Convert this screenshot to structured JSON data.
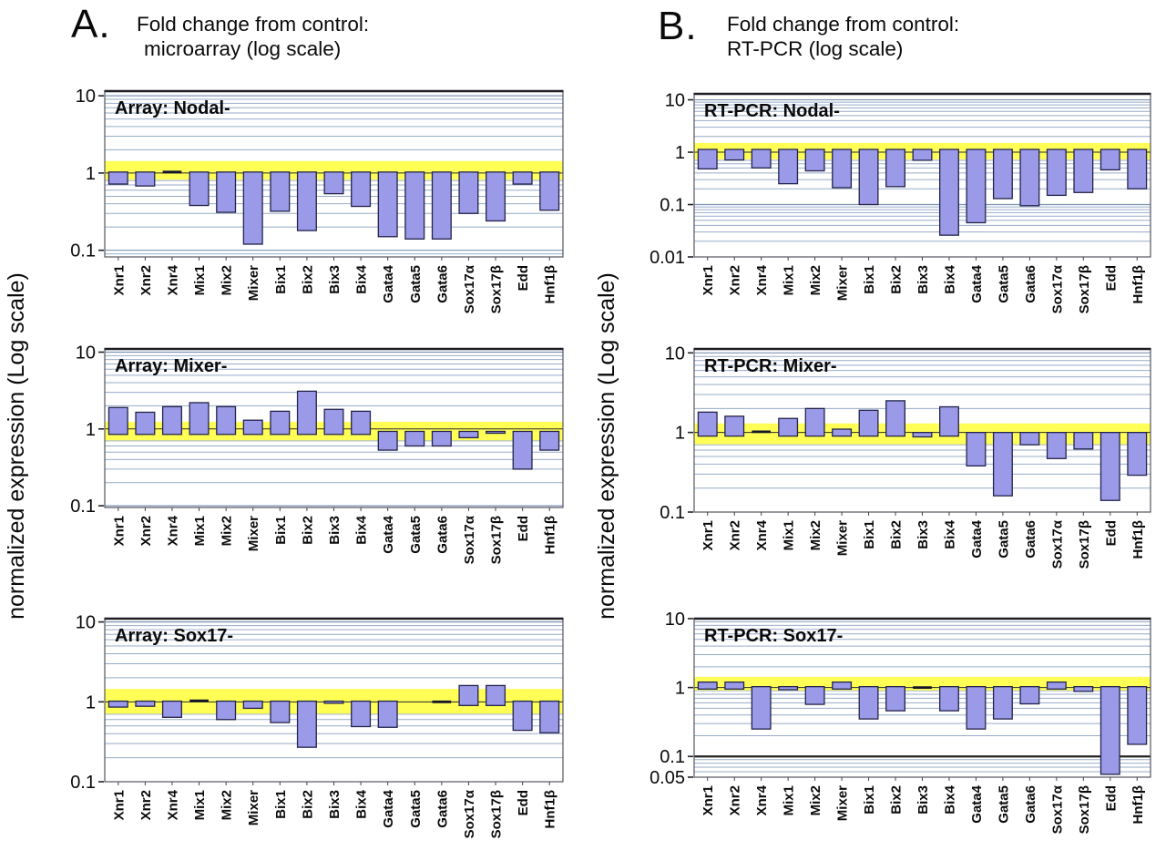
{
  "figure": {
    "panel_a": {
      "label": "A.",
      "title_line1": "Fold change from control:",
      "title_line2": "microarray (log scale)",
      "y_axis_label": "normalized expression (Log scale)"
    },
    "panel_b": {
      "label": "B.",
      "title_line1": "Fold change from control:",
      "title_line2": "RT-PCR (log scale)",
      "y_axis_label": "normalized expression (Log scale)"
    }
  },
  "colors": {
    "bar_fill": "#9b9ae9",
    "bar_stroke": "#23234a",
    "band_yellow": "#ffff55",
    "grid_minor": "#97abc9",
    "grid_decade": "#7e93b6",
    "baseline": "#2a2a2a",
    "dark_line": "#222222",
    "frame": "#55555f",
    "frame_top": "#1d1d24",
    "text": "#0a0a0a"
  },
  "categories": [
    "Xnr1",
    "Xnr2",
    "Xnr4",
    "Mix1",
    "Mix2",
    "Mixer",
    "Bix1",
    "Bix2",
    "Bix3",
    "Bix4",
    "Gata4",
    "Gata5",
    "Gata6",
    "Sox17α",
    "Sox17β",
    "Edd",
    "Hnf1β"
  ],
  "chart_data": [
    {
      "id": "array-nodal",
      "type": "bar",
      "title": "Array: Nodal-",
      "ylim": [
        0.082,
        11.5
      ],
      "y_ticks": [
        {
          "value": 10,
          "label": "10"
        },
        {
          "value": 1,
          "label": "1"
        },
        {
          "value": 0.1,
          "label": "0.1"
        }
      ],
      "band": [
        0.82,
        1.43
      ],
      "bar_base_up": 0.9,
      "bar_base_down": 1.03,
      "dark_lines": [],
      "values": [
        0.72,
        0.68,
        1.03,
        0.38,
        0.31,
        0.12,
        0.32,
        0.18,
        0.54,
        0.37,
        0.15,
        0.14,
        0.14,
        0.3,
        0.24,
        0.72,
        0.33
      ]
    },
    {
      "id": "array-mixer",
      "type": "bar",
      "title": "Array: Mixer-",
      "ylim": [
        0.095,
        11.0
      ],
      "y_ticks": [
        {
          "value": 10,
          "label": "10"
        },
        {
          "value": 1,
          "label": "1"
        },
        {
          "value": 0.1,
          "label": "0.1"
        }
      ],
      "band": [
        0.71,
        1.24
      ],
      "bar_base_up": 0.85,
      "bar_base_down": 0.93,
      "dark_lines": [],
      "values": [
        1.9,
        1.65,
        1.95,
        2.2,
        1.95,
        1.3,
        1.7,
        3.1,
        1.8,
        1.7,
        0.53,
        0.6,
        0.6,
        0.77,
        0.88,
        0.3,
        0.53
      ]
    },
    {
      "id": "array-sox17",
      "type": "bar",
      "title": "Array: Sox17-",
      "ylim": [
        0.1,
        11.0
      ],
      "y_ticks": [
        {
          "value": 10,
          "label": "10"
        },
        {
          "value": 1,
          "label": "1"
        },
        {
          "value": 0.1,
          "label": "0.1"
        }
      ],
      "band": [
        0.71,
        1.45
      ],
      "bar_base_up": 0.9,
      "bar_base_down": 1.02,
      "dark_lines": [],
      "values": [
        0.86,
        0.88,
        0.64,
        1.03,
        0.6,
        0.83,
        0.55,
        0.27,
        0.96,
        0.49,
        0.48,
        null,
        1.0,
        1.6,
        1.6,
        0.44,
        0.41
      ]
    },
    {
      "id": "rtpcr-nodal",
      "type": "bar",
      "title": "RT-PCR: Nodal-",
      "ylim": [
        0.01,
        13.0
      ],
      "y_ticks": [
        {
          "value": 10,
          "label": "10"
        },
        {
          "value": 1,
          "label": "1"
        },
        {
          "value": 0.1,
          "label": "0.1"
        },
        {
          "value": 0.01,
          "label": "0.01"
        }
      ],
      "band": [
        0.73,
        1.5
      ],
      "bar_base_up": 0.9,
      "bar_base_down": 1.13,
      "dark_lines": [],
      "values": [
        0.48,
        0.71,
        0.5,
        0.25,
        0.44,
        0.21,
        0.1,
        0.22,
        0.7,
        0.026,
        0.045,
        0.13,
        0.095,
        0.15,
        0.17,
        0.46,
        0.2
      ]
    },
    {
      "id": "rtpcr-mixer",
      "type": "bar",
      "title": "RT-PCR: Mixer-",
      "ylim": [
        0.1,
        11.2
      ],
      "y_ticks": [
        {
          "value": 10,
          "label": "10"
        },
        {
          "value": 1,
          "label": "1"
        },
        {
          "value": 0.1,
          "label": "0.1"
        }
      ],
      "band": [
        0.71,
        1.3
      ],
      "bar_base_up": 0.9,
      "bar_base_down": 1.0,
      "dark_lines": [],
      "values": [
        1.8,
        1.6,
        1.02,
        1.5,
        2.0,
        1.1,
        1.9,
        2.5,
        0.88,
        2.1,
        0.38,
        0.16,
        0.7,
        0.47,
        0.62,
        0.14,
        0.29
      ]
    },
    {
      "id": "rtpcr-sox17",
      "type": "bar",
      "title": "RT-PCR: Sox17-",
      "ylim": [
        0.05,
        10.0
      ],
      "y_ticks": [
        {
          "value": 10,
          "label": "10"
        },
        {
          "value": 1,
          "label": "1"
        },
        {
          "value": 0.1,
          "label": "0.1"
        },
        {
          "value": 0.05,
          "label": "0.05"
        }
      ],
      "band": [
        0.91,
        1.43
      ],
      "bar_base_up": 0.95,
      "bar_base_down": 1.03,
      "dark_lines": [
        0.1
      ],
      "values": [
        1.2,
        1.2,
        0.25,
        0.93,
        0.57,
        1.2,
        0.35,
        0.46,
        1.0,
        0.46,
        0.25,
        0.35,
        0.58,
        1.2,
        0.88,
        0.055,
        0.15
      ]
    }
  ]
}
